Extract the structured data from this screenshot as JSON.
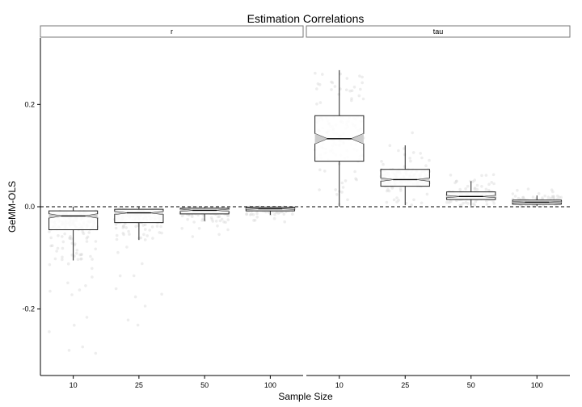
{
  "chart_data": {
    "type": "boxplot",
    "title": "Estimation Correlations",
    "xlabel": "Sample Size",
    "ylabel": "GeMM-OLS",
    "categories": [
      "10",
      "25",
      "50",
      "100"
    ],
    "ylim": [
      -0.33,
      0.33
    ],
    "yticks": [
      {
        "value": 0.2,
        "label": "0.2"
      },
      {
        "value": 0.0,
        "label": "0.0"
      },
      {
        "value": -0.2,
        "label": "-0.2"
      }
    ],
    "reference_line": {
      "value": 0.0,
      "style": "dashed"
    },
    "grid": false,
    "notched": true,
    "panels": [
      {
        "label": "r",
        "boxes": [
          {
            "category": "10",
            "whisker_low": -0.105,
            "q1": -0.045,
            "median": -0.018,
            "q3": -0.008,
            "whisker_high": 0.0,
            "notch_low": -0.022,
            "notch_high": -0.014,
            "jitter_min": -0.29,
            "jitter_max": 0.0,
            "jitter_count": 220
          },
          {
            "category": "25",
            "whisker_low": -0.065,
            "q1": -0.031,
            "median": -0.012,
            "q3": -0.005,
            "whisker_high": 0.0,
            "notch_low": -0.015,
            "notch_high": -0.009,
            "jitter_min": -0.24,
            "jitter_max": 0.0,
            "jitter_count": 200
          },
          {
            "category": "50",
            "whisker_low": -0.028,
            "q1": -0.014,
            "median": -0.007,
            "q3": -0.003,
            "whisker_high": 0.0,
            "notch_low": -0.009,
            "notch_high": -0.005,
            "jitter_min": -0.065,
            "jitter_max": 0.0,
            "jitter_count": 180
          },
          {
            "category": "100",
            "whisker_low": -0.016,
            "q1": -0.008,
            "median": -0.004,
            "q3": -0.001,
            "whisker_high": 0.0,
            "notch_low": -0.005,
            "notch_high": -0.003,
            "jitter_min": -0.03,
            "jitter_max": 0.0,
            "jitter_count": 160
          }
        ]
      },
      {
        "label": "tau",
        "boxes": [
          {
            "category": "10",
            "whisker_low": 0.0,
            "q1": 0.089,
            "median": 0.133,
            "q3": 0.178,
            "whisker_high": 0.267,
            "notch_low": 0.123,
            "notch_high": 0.143,
            "jitter_min": 0.0,
            "jitter_max": 0.267,
            "jitter_count": 160
          },
          {
            "category": "25",
            "whisker_low": 0.003,
            "q1": 0.04,
            "median": 0.053,
            "q3": 0.073,
            "whisker_high": 0.12,
            "notch_low": 0.05,
            "notch_high": 0.056,
            "jitter_min": 0.003,
            "jitter_max": 0.17,
            "jitter_count": 200
          },
          {
            "category": "50",
            "whisker_low": 0.002,
            "q1": 0.014,
            "median": 0.02,
            "q3": 0.029,
            "whisker_high": 0.05,
            "notch_low": 0.018,
            "notch_high": 0.022,
            "jitter_min": 0.001,
            "jitter_max": 0.075,
            "jitter_count": 180
          },
          {
            "category": "100",
            "whisker_low": 0.001,
            "q1": 0.005,
            "median": 0.009,
            "q3": 0.013,
            "whisker_high": 0.022,
            "notch_low": 0.008,
            "notch_high": 0.01,
            "jitter_min": 0.0,
            "jitter_max": 0.035,
            "jitter_count": 160
          }
        ]
      }
    ],
    "colors": {
      "box_fill": "#ffffff",
      "box_stroke": "#222222",
      "notch_fill": "#cccccc",
      "jitter": "#d8d8d8",
      "axis": "#000000",
      "strip_border": "#777777"
    }
  }
}
